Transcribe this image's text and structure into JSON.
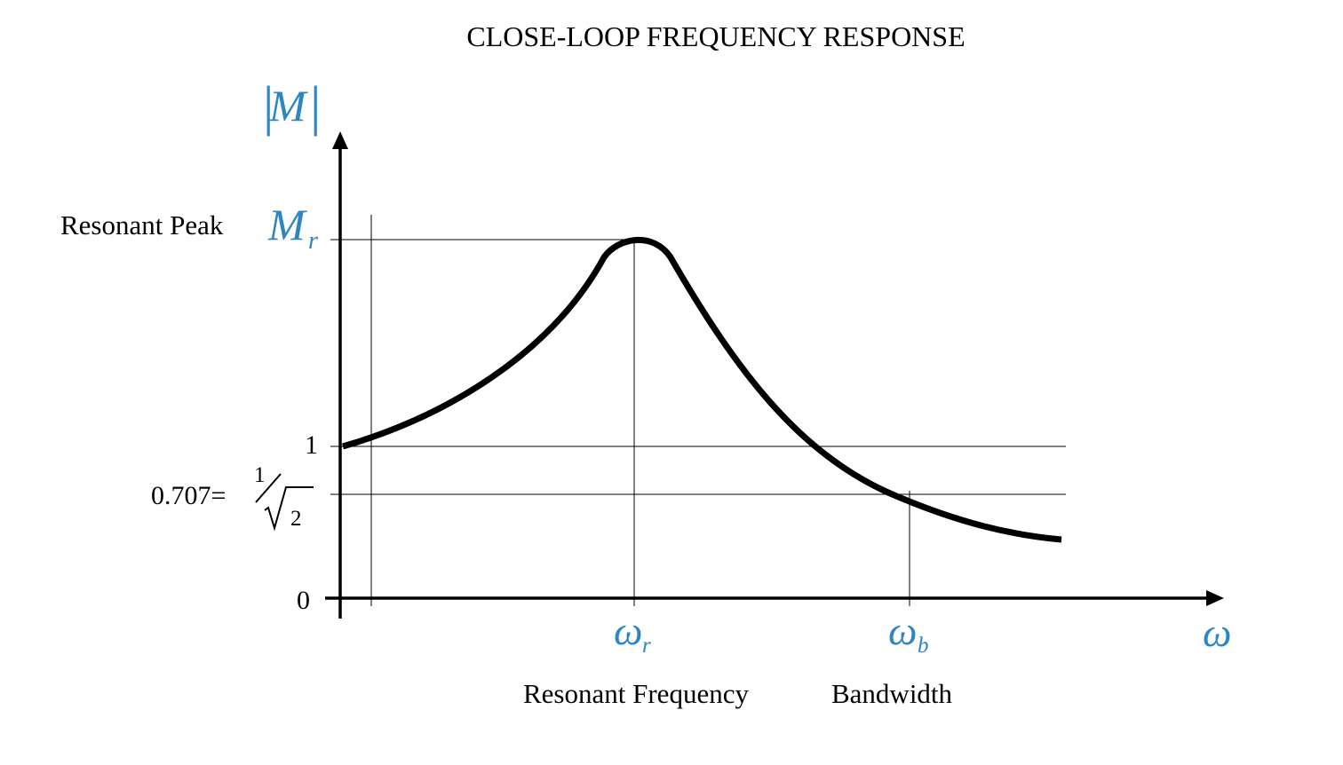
{
  "title": "CLOSE-LOOP FREQUENCY RESPONSE",
  "y_axis": {
    "label_main": "M",
    "label_left_bar": "|",
    "label_right_bar": "|"
  },
  "x_axis": {
    "label": "ω"
  },
  "peak": {
    "description": "Resonant Peak",
    "symbol_main": "M",
    "symbol_sub": "r"
  },
  "levels": {
    "one": "1",
    "zero": "0",
    "cutoff_prefix": "0.707=",
    "cutoff_numerator": "1",
    "cutoff_slash": "⁄",
    "cutoff_radical": "√",
    "cutoff_denominator": "2"
  },
  "resonant_frequency": {
    "symbol_main": "ω",
    "symbol_sub": "r",
    "description": "Resonant Frequency"
  },
  "bandwidth": {
    "symbol_main": "ω",
    "symbol_sub": "b",
    "description": "Bandwidth"
  },
  "colors": {
    "accent": "#2E86C1",
    "curve": "#000000",
    "guides": "#000000"
  }
}
